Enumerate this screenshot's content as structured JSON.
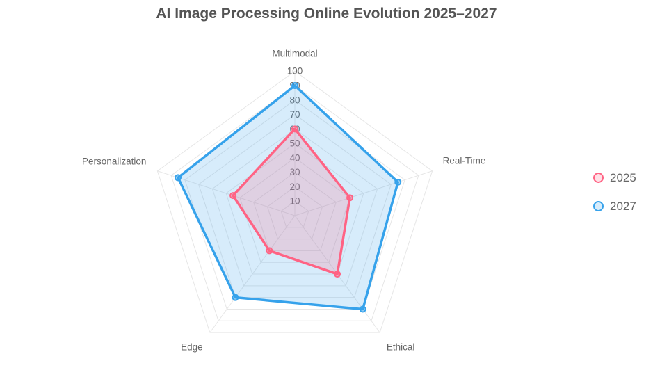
{
  "title": "AI Image Processing Online Evolution 2025–2027",
  "legend": {
    "position": "right",
    "items": [
      {
        "label": "2025",
        "color": "#FF6384",
        "fill": "rgba(255,99,132,0.2)"
      },
      {
        "label": "2027",
        "color": "#36A2EB",
        "fill": "rgba(54,162,235,0.2)"
      }
    ]
  },
  "chart_data": {
    "type": "radar",
    "title": "AI Image Processing Online Evolution 2025–2027",
    "categories": [
      "Multimodal",
      "Real-Time",
      "Ethical",
      "Edge",
      "Personalization"
    ],
    "series": [
      {
        "name": "2025",
        "values": [
          60,
          40,
          50,
          30,
          45
        ],
        "color": "#FF6384",
        "fill": "rgba(255,99,132,0.2)"
      },
      {
        "name": "2027",
        "values": [
          90,
          75,
          80,
          70,
          85
        ],
        "color": "#36A2EB",
        "fill": "rgba(54,162,235,0.2)"
      }
    ],
    "r_axis": {
      "min": 0,
      "max": 100,
      "ticks": [
        10,
        20,
        30,
        40,
        50,
        60,
        70,
        80,
        90,
        100
      ]
    },
    "grid": true,
    "legend_position": "right",
    "colors": {
      "grid_line": "#e6e6e6",
      "tick_label": "#696969",
      "axis_label": "#666666",
      "title": "#545454"
    }
  }
}
